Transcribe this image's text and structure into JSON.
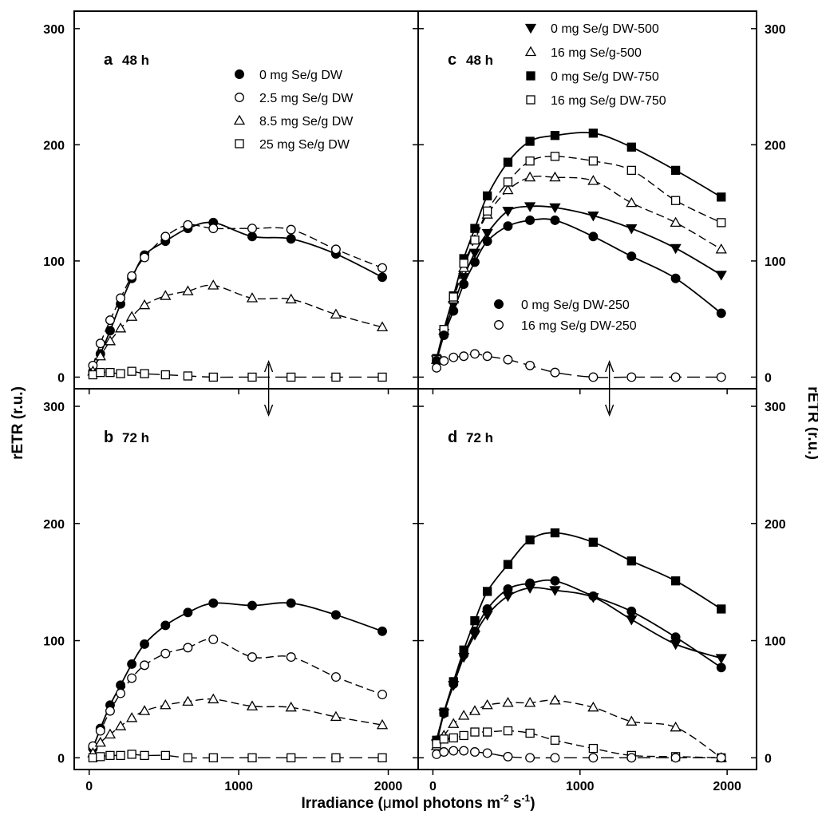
{
  "figure": {
    "xlabel_main": "Irradiance (",
    "xlabel_mu": "μ",
    "xlabel_rest": "mol photons m",
    "xlabel_sup1": "-2",
    "xlabel_mid": " s",
    "xlabel_sup2": "-1",
    "xlabel_close": ")",
    "ylabel_left": "rETR (r.u.)",
    "ylabel_right": "rETR (r.u.)"
  },
  "chart_data": [
    {
      "id": "a",
      "type": "scatter",
      "panel_letter": "a",
      "panel_time": "48 h",
      "xlim": [
        -100,
        2200
      ],
      "ylim": [
        -10,
        315
      ],
      "xticks": [
        0,
        1000,
        2000
      ],
      "yticks": [
        0,
        100,
        200,
        300
      ],
      "x_tick_labels": false,
      "y_tick_labels": "left",
      "legend_position": "top-right",
      "arrow": {
        "x": 1200,
        "direction": "down-up"
      },
      "series": [
        {
          "name": "0 mg Se/g DW",
          "marker": "circle-filled",
          "line": "solid",
          "x": [
            25,
            75,
            140,
            210,
            285,
            370,
            510,
            660,
            830,
            1090,
            1350,
            1650,
            1960
          ],
          "y": [
            5,
            20,
            40,
            63,
            85,
            105,
            117,
            128,
            133,
            121,
            119,
            106,
            86
          ]
        },
        {
          "name": "2.5 mg Se/g DW",
          "marker": "circle-open",
          "line": "dashed",
          "x": [
            25,
            75,
            140,
            210,
            285,
            370,
            510,
            660,
            830,
            1090,
            1350,
            1650,
            1960
          ],
          "y": [
            10,
            29,
            49,
            68,
            87,
            103,
            121,
            131,
            128,
            128,
            127,
            110,
            94
          ]
        },
        {
          "name": "8.5 mg Se/g DW",
          "marker": "triangle-open",
          "line": "dashed",
          "x": [
            25,
            75,
            140,
            210,
            285,
            370,
            510,
            660,
            830,
            1090,
            1350,
            1650,
            1960
          ],
          "y": [
            5,
            18,
            31,
            42,
            52,
            62,
            70,
            74,
            79,
            68,
            67,
            54,
            43
          ]
        },
        {
          "name": "25 mg Se/g DW",
          "marker": "square-open",
          "line": "long-dash",
          "x": [
            25,
            75,
            140,
            210,
            285,
            370,
            510,
            660,
            830,
            1090,
            1350,
            1650,
            1960
          ],
          "y": [
            2,
            4,
            4,
            3,
            5,
            3,
            2,
            1,
            0,
            0,
            0,
            0,
            0
          ]
        }
      ]
    },
    {
      "id": "b",
      "type": "scatter",
      "panel_letter": "b",
      "panel_time": "72 h",
      "xlim": [
        -100,
        2200
      ],
      "ylim": [
        -10,
        315
      ],
      "xticks": [
        0,
        1000,
        2000
      ],
      "yticks": [
        0,
        100,
        200,
        300
      ],
      "x_tick_labels": true,
      "y_tick_labels": "left",
      "series": [
        {
          "name": "0 mg Se/g DW",
          "marker": "circle-filled",
          "line": "solid",
          "x": [
            25,
            75,
            140,
            210,
            285,
            370,
            510,
            660,
            830,
            1090,
            1350,
            1650,
            1960
          ],
          "y": [
            8,
            25,
            45,
            62,
            80,
            97,
            113,
            124,
            132,
            130,
            132,
            122,
            108
          ]
        },
        {
          "name": "2.5 mg Se/g DW",
          "marker": "circle-open",
          "line": "dashed",
          "x": [
            25,
            75,
            140,
            210,
            285,
            370,
            510,
            660,
            830,
            1090,
            1350,
            1650,
            1960
          ],
          "y": [
            10,
            23,
            40,
            55,
            68,
            79,
            89,
            94,
            101,
            86,
            86,
            69,
            54
          ]
        },
        {
          "name": "8.5 mg Se/g DW",
          "marker": "triangle-open",
          "line": "dashed",
          "x": [
            25,
            75,
            140,
            210,
            285,
            370,
            510,
            660,
            830,
            1090,
            1350,
            1650,
            1960
          ],
          "y": [
            4,
            13,
            20,
            27,
            34,
            40,
            45,
            48,
            50,
            44,
            43,
            35,
            28
          ]
        },
        {
          "name": "25 mg Se/g DW",
          "marker": "square-open",
          "line": "long-dash",
          "x": [
            25,
            75,
            140,
            210,
            285,
            370,
            510,
            660,
            830,
            1090,
            1350,
            1650,
            1960
          ],
          "y": [
            0,
            1,
            2,
            2,
            3,
            2,
            2,
            0,
            0,
            0,
            0,
            0,
            0
          ]
        }
      ]
    },
    {
      "id": "c",
      "type": "scatter",
      "panel_letter": "c",
      "panel_time": "48 h",
      "xlim": [
        -100,
        2200
      ],
      "ylim": [
        -10,
        315
      ],
      "xticks": [
        0,
        1000,
        2000
      ],
      "yticks": [
        0,
        100,
        200,
        300
      ],
      "x_tick_labels": false,
      "y_tick_labels": "right",
      "legend_position": "top-right",
      "legend2_position": "center",
      "arrow": {
        "x": 1200,
        "direction": "down-up"
      },
      "series": [
        {
          "name": "0 mg Se/g DW-500",
          "marker": "triangle-down-filled",
          "line": "solid",
          "legend_group": 1,
          "x": [
            25,
            75,
            140,
            210,
            285,
            370,
            510,
            660,
            830,
            1090,
            1350,
            1650,
            1960
          ],
          "y": [
            15,
            38,
            62,
            86,
            107,
            124,
            143,
            147,
            146,
            139,
            128,
            111,
            88
          ]
        },
        {
          "name": "16 mg Se/g-500",
          "marker": "triangle-open",
          "line": "dashed",
          "legend_group": 1,
          "x": [
            25,
            75,
            140,
            210,
            285,
            370,
            510,
            660,
            830,
            1090,
            1350,
            1650,
            1960
          ],
          "y": [
            15,
            40,
            67,
            94,
            118,
            140,
            161,
            172,
            172,
            169,
            150,
            133,
            110
          ]
        },
        {
          "name": "0 mg Se/g DW-750",
          "marker": "square-filled",
          "line": "solid",
          "legend_group": 1,
          "x": [
            25,
            75,
            140,
            210,
            285,
            370,
            510,
            660,
            830,
            1090,
            1350,
            1650,
            1960
          ],
          "y": [
            16,
            41,
            70,
            102,
            128,
            156,
            185,
            203,
            208,
            210,
            198,
            178,
            155
          ]
        },
        {
          "name": "16 mg Se/g DW-750",
          "marker": "square-open",
          "line": "dashed",
          "legend_group": 1,
          "x": [
            25,
            75,
            140,
            210,
            285,
            370,
            510,
            660,
            830,
            1090,
            1350,
            1650,
            1960
          ],
          "y": [
            15,
            41,
            69,
            98,
            118,
            143,
            168,
            186,
            190,
            186,
            178,
            152,
            133
          ]
        },
        {
          "name": "0 mg Se/g DW-250",
          "marker": "circle-filled",
          "line": "solid",
          "legend_group": 2,
          "x": [
            25,
            75,
            140,
            210,
            285,
            370,
            510,
            660,
            830,
            1090,
            1350,
            1650,
            1960
          ],
          "y": [
            14,
            36,
            57,
            80,
            99,
            117,
            130,
            135,
            135,
            121,
            104,
            85,
            55
          ]
        },
        {
          "name": "16 mg Se/g DW-250",
          "marker": "circle-open",
          "line": "long-dash",
          "legend_group": 2,
          "x": [
            25,
            75,
            140,
            210,
            285,
            370,
            510,
            660,
            830,
            1090,
            1350,
            1650,
            1960
          ],
          "y": [
            8,
            14,
            17,
            18,
            20,
            18,
            15,
            10,
            4,
            0,
            0,
            0,
            0
          ]
        }
      ]
    },
    {
      "id": "d",
      "type": "scatter",
      "panel_letter": "d",
      "panel_time": "72 h",
      "xlim": [
        -100,
        2200
      ],
      "ylim": [
        -10,
        315
      ],
      "xticks": [
        0,
        1000,
        2000
      ],
      "yticks": [
        0,
        100,
        200,
        300
      ],
      "x_tick_labels": true,
      "y_tick_labels": "right",
      "series": [
        {
          "name": "0 mg Se/g DW-500",
          "marker": "triangle-down-filled",
          "line": "solid",
          "x": [
            25,
            75,
            140,
            210,
            285,
            370,
            510,
            660,
            830,
            1090,
            1350,
            1650,
            1960
          ],
          "y": [
            12,
            38,
            62,
            86,
            105,
            122,
            138,
            145,
            143,
            137,
            118,
            97,
            85
          ]
        },
        {
          "name": "0 mg Se/g DW-750",
          "marker": "square-filled",
          "line": "solid",
          "x": [
            25,
            75,
            140,
            210,
            285,
            370,
            510,
            660,
            830,
            1090,
            1350,
            1650,
            1960
          ],
          "y": [
            15,
            39,
            65,
            92,
            117,
            142,
            165,
            186,
            192,
            184,
            168,
            151,
            127
          ]
        },
        {
          "name": "16 mg Se/g-500",
          "marker": "triangle-open",
          "line": "dashed",
          "x": [
            25,
            75,
            140,
            210,
            285,
            370,
            510,
            660,
            830,
            1090,
            1350,
            1650,
            1960
          ],
          "y": [
            10,
            19,
            29,
            36,
            40,
            45,
            47,
            47,
            49,
            43,
            31,
            26,
            0
          ]
        },
        {
          "name": "0 mg Se/g DW-250",
          "marker": "circle-filled",
          "line": "solid",
          "x": [
            25,
            75,
            140,
            210,
            285,
            370,
            510,
            660,
            830,
            1090,
            1350,
            1650,
            1960
          ],
          "y": [
            15,
            38,
            63,
            88,
            108,
            127,
            144,
            149,
            151,
            138,
            125,
            103,
            77
          ]
        },
        {
          "name": "16 mg Se/g DW-750",
          "marker": "square-open",
          "line": "dashed",
          "x": [
            25,
            75,
            140,
            210,
            285,
            370,
            510,
            660,
            830,
            1090,
            1350,
            1650,
            1960
          ],
          "y": [
            12,
            16,
            17,
            19,
            22,
            22,
            23,
            21,
            15,
            8,
            2,
            1,
            0
          ]
        },
        {
          "name": "16 mg Se/g DW-250",
          "marker": "circle-open",
          "line": "long-dash",
          "x": [
            25,
            75,
            140,
            210,
            285,
            370,
            510,
            660,
            830,
            1090,
            1350,
            1650,
            1960
          ],
          "y": [
            3,
            5,
            6,
            6,
            5,
            4,
            1,
            0,
            0,
            0,
            0,
            0,
            0
          ]
        }
      ]
    }
  ]
}
